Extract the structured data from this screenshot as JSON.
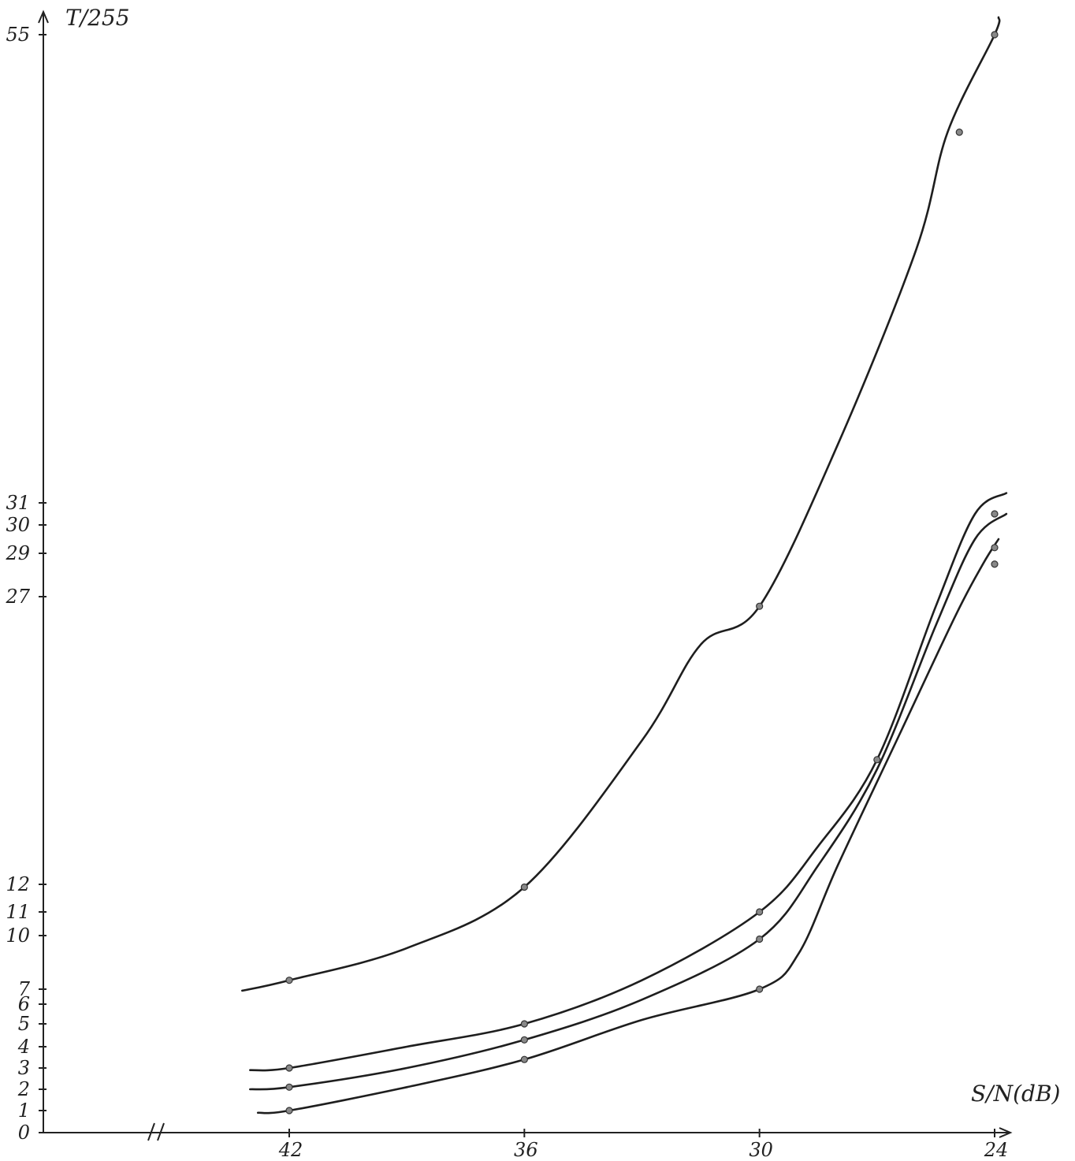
{
  "chart_data": {
    "type": "line",
    "xlabel": "S/N(dB)",
    "ylabel": "T/255",
    "x_reversed": true,
    "x_axis_break": true,
    "xlim": [
      45.5,
      23.5
    ],
    "ylim": [
      0,
      57
    ],
    "x_ticks": [
      "42",
      "36",
      "30",
      "24"
    ],
    "y_ticks": [
      "0",
      "1",
      "2",
      "3",
      "4",
      "5",
      "6",
      "7",
      "10",
      "11",
      "12",
      "27",
      "29",
      "30",
      "31",
      "55"
    ],
    "grid": false,
    "series": [
      {
        "line": [
          [
            43.2,
            6.9
          ],
          [
            42,
            7.5
          ],
          [
            39,
            9.3
          ],
          [
            36,
            11.9
          ],
          [
            33,
            19.5
          ],
          [
            31.5,
            24.5
          ],
          [
            30,
            26.5
          ],
          [
            28,
            34
          ],
          [
            26,
            44
          ],
          [
            25.2,
            50
          ],
          [
            24,
            55
          ],
          [
            23.9,
            56
          ]
        ],
        "markers": [
          [
            42,
            7.5
          ],
          [
            36,
            11.9
          ],
          [
            30,
            26.5
          ],
          [
            24.9,
            50
          ],
          [
            24,
            55
          ]
        ]
      },
      {
        "line": [
          [
            43,
            2.9
          ],
          [
            42,
            3.0
          ],
          [
            39,
            4.0
          ],
          [
            36,
            5.0
          ],
          [
            33,
            7.5
          ],
          [
            30,
            11.0
          ],
          [
            28.5,
            14.0
          ],
          [
            27,
            18.5
          ],
          [
            25.5,
            26.5
          ],
          [
            24.5,
            30.5
          ],
          [
            23.7,
            31.5
          ]
        ],
        "markers": [
          [
            42,
            3.0
          ],
          [
            36,
            5.0
          ],
          [
            30,
            11.0
          ],
          [
            27,
            18.5
          ],
          [
            24,
            30.5
          ]
        ]
      },
      {
        "line": [
          [
            43,
            2.0
          ],
          [
            42,
            2.1
          ],
          [
            39,
            3.0
          ],
          [
            36,
            4.3
          ],
          [
            33,
            6.3
          ],
          [
            30,
            9.8
          ],
          [
            28.5,
            13.0
          ],
          [
            27,
            18.0
          ],
          [
            25.5,
            25.5
          ],
          [
            24.5,
            29.5
          ],
          [
            23.7,
            30.5
          ]
        ],
        "markers": [
          [
            42,
            2.1
          ],
          [
            36,
            4.3
          ],
          [
            30,
            9.8
          ],
          [
            24,
            29.2
          ]
        ]
      },
      {
        "line": [
          [
            42.8,
            0.9
          ],
          [
            42,
            1.0
          ],
          [
            39,
            2.1
          ],
          [
            36,
            3.4
          ],
          [
            33,
            5.2
          ],
          [
            30,
            7.0
          ],
          [
            29,
            9.0
          ],
          [
            28,
            13.0
          ],
          [
            26.5,
            19.5
          ],
          [
            25,
            26.0
          ],
          [
            24.3,
            28.5
          ],
          [
            23.9,
            29.5
          ]
        ],
        "markers": [
          [
            42,
            1.0
          ],
          [
            36,
            3.4
          ],
          [
            30,
            7.0
          ],
          [
            24,
            28.5
          ]
        ]
      }
    ]
  }
}
